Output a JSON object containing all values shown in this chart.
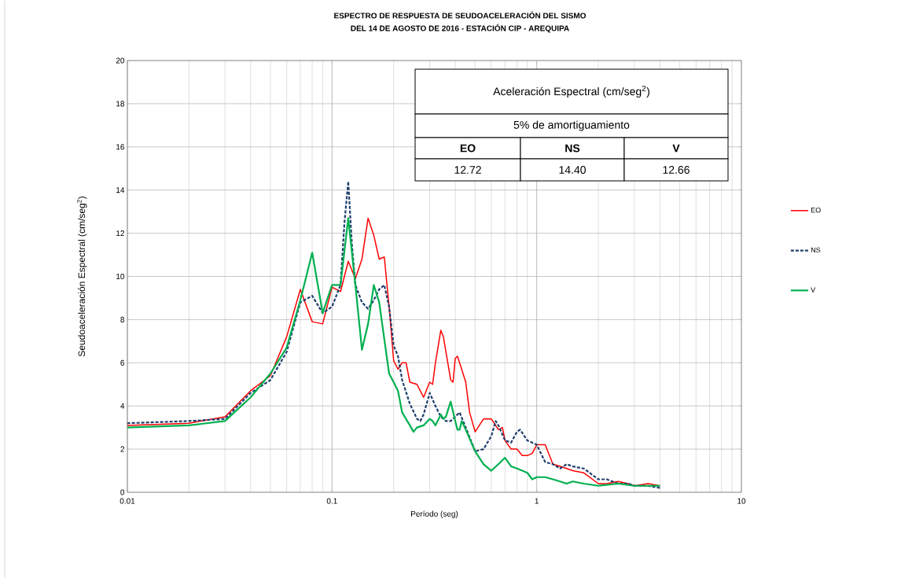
{
  "chart_data": {
    "type": "line",
    "title": "ESPECTRO DE RESPUESTA DE SEUDOACELERACIÓN  DEL SISMO",
    "subtitle": "DEL 14 DE AGOSTO DE 2016 - ESTACIÓN CIP - AREQUIPA",
    "xlabel": "Período (seg)",
    "ylabel": "Seudoaceleración Espectral (cm/seg$^{2}$)",
    "log": "x",
    "xlim": [
      0.01,
      10
    ],
    "xticks": [
      0.01,
      0.1,
      1,
      10
    ],
    "ylim": [
      0,
      20
    ],
    "yticks": [
      0,
      2,
      4,
      6,
      8,
      10,
      12,
      14,
      16,
      18,
      20
    ],
    "grid": true,
    "legend": "right",
    "marker": "none",
    "line_style": "solid",
    "series": [
      {
        "name": "EO",
        "color": "#ff0000",
        "x": [
          0.01,
          0.02,
          0.03,
          0.04,
          0.05,
          0.06,
          0.07,
          0.08,
          0.09,
          0.1,
          0.11,
          0.12,
          0.13,
          0.14,
          0.15,
          0.16,
          0.17,
          0.18,
          0.19,
          0.2,
          0.21,
          0.22,
          0.23,
          0.24,
          0.26,
          0.28,
          0.3,
          0.31,
          0.32,
          0.34,
          0.35,
          0.38,
          0.39,
          0.4,
          0.41,
          0.42,
          0.45,
          0.47,
          0.5,
          0.55,
          0.6,
          0.65,
          0.68,
          0.7,
          0.75,
          0.8,
          0.85,
          0.9,
          0.95,
          1.0,
          1.1,
          1.2,
          1.3,
          1.4,
          1.5,
          1.7,
          2,
          2.2,
          2.5,
          2.8,
          3,
          3.5,
          4
        ],
        "values": [
          3.1,
          3.2,
          3.5,
          4.7,
          5.4,
          7.2,
          9.4,
          7.9,
          7.8,
          9.5,
          9.3,
          10.7,
          9.9,
          10.8,
          12.7,
          11.9,
          10.8,
          10.9,
          8.6,
          6.1,
          5.7,
          6.0,
          6.0,
          5.1,
          5.0,
          4.4,
          5.1,
          5.0,
          6.0,
          7.5,
          7.2,
          5.2,
          5.1,
          6.2,
          6.3,
          6.0,
          5.1,
          3.7,
          2.8,
          3.4,
          3.4,
          2.9,
          3.0,
          2.4,
          2.0,
          2.0,
          1.7,
          1.7,
          1.8,
          2.2,
          2.2,
          1.3,
          1.2,
          1.1,
          1.0,
          0.9,
          0.4,
          0.4,
          0.5,
          0.4,
          0.3,
          0.4,
          0.3
        ]
      },
      {
        "name": "NS",
        "color": "#1f3f6e",
        "line_style": "dashed",
        "x": [
          0.01,
          0.02,
          0.03,
          0.04,
          0.05,
          0.06,
          0.07,
          0.08,
          0.09,
          0.1,
          0.11,
          0.115,
          0.12,
          0.125,
          0.13,
          0.14,
          0.15,
          0.16,
          0.17,
          0.18,
          0.19,
          0.2,
          0.21,
          0.22,
          0.24,
          0.26,
          0.27,
          0.28,
          0.3,
          0.32,
          0.34,
          0.36,
          0.38,
          0.4,
          0.42,
          0.45,
          0.5,
          0.55,
          0.6,
          0.63,
          0.65,
          0.7,
          0.75,
          0.8,
          0.83,
          0.9,
          1.0,
          1.1,
          1.2,
          1.3,
          1.4,
          1.5,
          1.7,
          2,
          2.2,
          2.5,
          2.8,
          3,
          3.5,
          4
        ],
        "values": [
          3.2,
          3.3,
          3.4,
          4.6,
          5.2,
          6.5,
          8.8,
          9.1,
          8.3,
          8.6,
          9.6,
          12.5,
          14.4,
          11.5,
          9.6,
          8.8,
          8.5,
          8.9,
          9.4,
          9.6,
          8.6,
          6.8,
          6.3,
          5.2,
          4.1,
          3.4,
          3.3,
          3.6,
          4.6,
          4.0,
          3.5,
          3.3,
          3.3,
          3.5,
          3.7,
          3.0,
          1.9,
          2.0,
          2.6,
          3.3,
          3.1,
          2.4,
          2.3,
          2.8,
          2.9,
          2.4,
          2.2,
          1.4,
          1.3,
          1.1,
          1.3,
          1.2,
          1.1,
          0.6,
          0.6,
          0.4,
          0.4,
          0.3,
          0.3,
          0.2
        ]
      },
      {
        "name": "V",
        "color": "#00b050",
        "x": [
          0.01,
          0.02,
          0.03,
          0.04,
          0.05,
          0.06,
          0.07,
          0.08,
          0.09,
          0.1,
          0.11,
          0.12,
          0.13,
          0.14,
          0.15,
          0.16,
          0.17,
          0.18,
          0.19,
          0.2,
          0.21,
          0.22,
          0.24,
          0.25,
          0.26,
          0.28,
          0.3,
          0.31,
          0.32,
          0.34,
          0.35,
          0.36,
          0.38,
          0.4,
          0.41,
          0.42,
          0.43,
          0.45,
          0.5,
          0.55,
          0.6,
          0.65,
          0.7,
          0.75,
          0.8,
          0.85,
          0.9,
          0.95,
          1.0,
          1.1,
          1.2,
          1.3,
          1.4,
          1.5,
          1.7,
          2,
          2.5,
          3,
          3.5,
          4
        ],
        "values": [
          3.0,
          3.1,
          3.3,
          4.4,
          5.5,
          6.7,
          8.9,
          11.1,
          8.3,
          9.6,
          9.6,
          12.7,
          9.6,
          6.6,
          7.8,
          9.6,
          8.8,
          7.1,
          5.5,
          5.1,
          4.7,
          3.7,
          3.1,
          2.8,
          3.0,
          3.1,
          3.4,
          3.3,
          3.1,
          3.6,
          3.4,
          3.5,
          4.2,
          3.3,
          2.9,
          2.9,
          3.3,
          2.9,
          1.9,
          1.3,
          1.0,
          1.3,
          1.6,
          1.2,
          1.1,
          1.0,
          0.9,
          0.6,
          0.7,
          0.7,
          0.6,
          0.5,
          0.4,
          0.5,
          0.4,
          0.3,
          0.4,
          0.3,
          0.3,
          0.3
        ]
      }
    ],
    "annotations": [
      "Aceleración Espectral (cm/seg$^{2}$)",
      "5% de amortiguamiento",
      "EO",
      "NS",
      "V",
      "12.72",
      "14.40",
      "12.66"
    ]
  }
}
